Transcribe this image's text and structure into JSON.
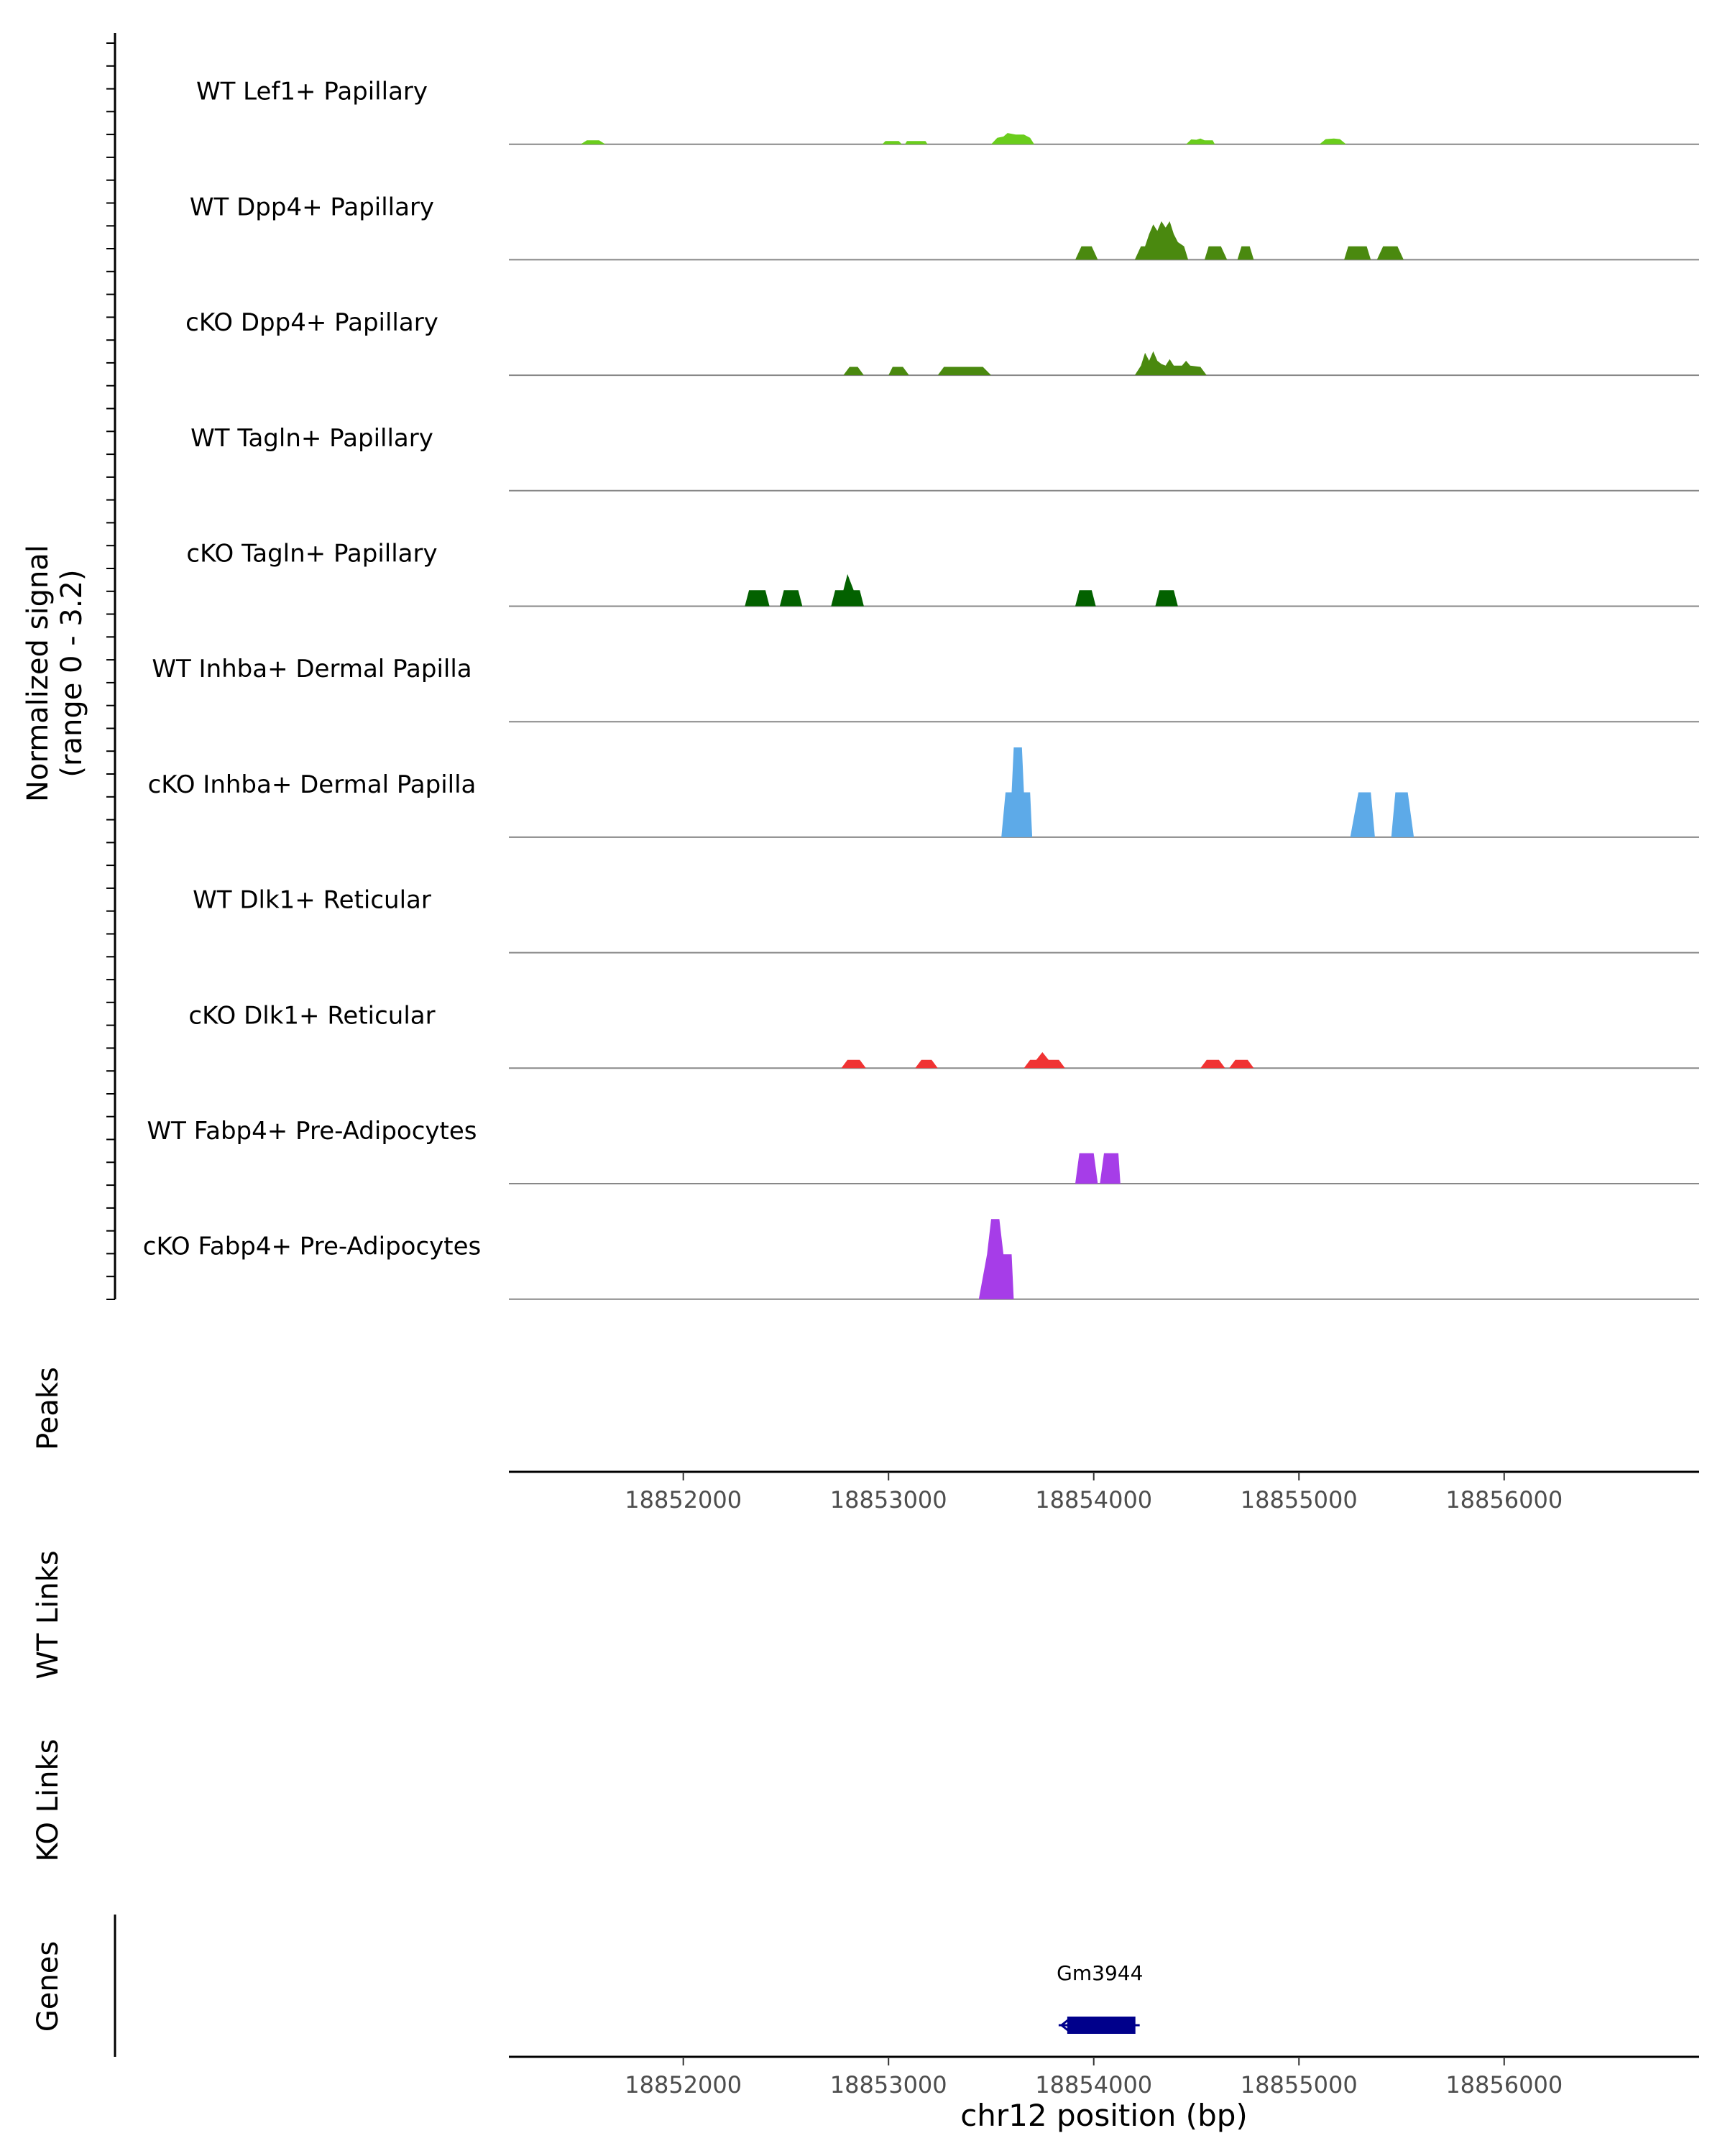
{
  "chart_data": {
    "type": "area",
    "chromosome": "chr12",
    "xlim": [
      18851150,
      18856950
    ],
    "xlabel": "chr12 position (bp)",
    "x_ticks": [
      18852000,
      18853000,
      18854000,
      18855000,
      18856000
    ],
    "x_tick_labels": [
      "18852000",
      "18853000",
      "18854000",
      "18855000",
      "18856000"
    ],
    "coverage": {
      "ylabel_line1": "Normalized signal",
      "ylabel_line2": "(range 0 - 3.2)",
      "ylim": [
        0,
        3.2
      ],
      "tracks": [
        {
          "name": "WT Lef1+ Papillary",
          "color": "#6ACD1C",
          "points": [
            [
              18851500,
              0
            ],
            [
              18851530,
              0.12
            ],
            [
              18851590,
              0.12
            ],
            [
              18851620,
              0
            ],
            [
              18852970,
              0
            ],
            [
              18852985,
              0.1
            ],
            [
              18853050,
              0.1
            ],
            [
              18853065,
              0
            ],
            [
              18853080,
              0
            ],
            [
              18853090,
              0.1
            ],
            [
              18853180,
              0.1
            ],
            [
              18853190,
              0
            ],
            [
              18853500,
              0
            ],
            [
              18853530,
              0.2
            ],
            [
              18853560,
              0.24
            ],
            [
              18853580,
              0.35
            ],
            [
              18853620,
              0.3
            ],
            [
              18853660,
              0.3
            ],
            [
              18853690,
              0.2
            ],
            [
              18853710,
              0
            ],
            [
              18854450,
              0
            ],
            [
              18854475,
              0.15
            ],
            [
              18854500,
              0.14
            ],
            [
              18854520,
              0.18
            ],
            [
              18854540,
              0.12
            ],
            [
              18854580,
              0.12
            ],
            [
              18854590,
              0
            ],
            [
              18855100,
              0
            ],
            [
              18855130,
              0.16
            ],
            [
              18855170,
              0.18
            ],
            [
              18855200,
              0.16
            ],
            [
              18855230,
              0
            ]
          ]
        },
        {
          "name": "WT Dpp4+ Papillary",
          "color": "#4A890F",
          "points": [
            [
              18853910,
              0
            ],
            [
              18853940,
              0.42
            ],
            [
              18853990,
              0.42
            ],
            [
              18854020,
              0
            ],
            [
              18854200,
              0
            ],
            [
              18854230,
              0.42
            ],
            [
              18854250,
              0.42
            ],
            [
              18854270,
              0.8
            ],
            [
              18854290,
              1.1
            ],
            [
              18854310,
              0.9
            ],
            [
              18854330,
              1.2
            ],
            [
              18854350,
              1.0
            ],
            [
              18854370,
              1.2
            ],
            [
              18854390,
              0.8
            ],
            [
              18854410,
              0.55
            ],
            [
              18854440,
              0.42
            ],
            [
              18854460,
              0
            ],
            [
              18854540,
              0
            ],
            [
              18854560,
              0.42
            ],
            [
              18854620,
              0.42
            ],
            [
              18854650,
              0
            ],
            [
              18854700,
              0
            ],
            [
              18854720,
              0.42
            ],
            [
              18854760,
              0.42
            ],
            [
              18854780,
              0
            ],
            [
              18855220,
              0
            ],
            [
              18855240,
              0.42
            ],
            [
              18855330,
              0.42
            ],
            [
              18855350,
              0
            ],
            [
              18855380,
              0
            ],
            [
              18855410,
              0.42
            ],
            [
              18855480,
              0.42
            ],
            [
              18855510,
              0
            ]
          ]
        },
        {
          "name": "cKO Dpp4+ Papillary",
          "color": "#4A890F",
          "points": [
            [
              18852780,
              0
            ],
            [
              18852810,
              0.26
            ],
            [
              18852850,
              0.26
            ],
            [
              18852880,
              0
            ],
            [
              18853000,
              0
            ],
            [
              18853020,
              0.26
            ],
            [
              18853070,
              0.26
            ],
            [
              18853100,
              0
            ],
            [
              18853240,
              0
            ],
            [
              18853270,
              0.26
            ],
            [
              18853460,
              0.26
            ],
            [
              18853500,
              0
            ],
            [
              18854200,
              0
            ],
            [
              18854230,
              0.3
            ],
            [
              18854250,
              0.7
            ],
            [
              18854270,
              0.45
            ],
            [
              18854290,
              0.75
            ],
            [
              18854310,
              0.45
            ],
            [
              18854330,
              0.35
            ],
            [
              18854350,
              0.3
            ],
            [
              18854370,
              0.5
            ],
            [
              18854390,
              0.3
            ],
            [
              18854430,
              0.3
            ],
            [
              18854450,
              0.45
            ],
            [
              18854470,
              0.3
            ],
            [
              18854520,
              0.26
            ],
            [
              18854550,
              0
            ]
          ]
        },
        {
          "name": "WT Tagln+ Papillary",
          "color": "#1E6B00",
          "points": []
        },
        {
          "name": "cKO Tagln+ Papillary",
          "color": "#036100",
          "points": [
            [
              18852300,
              0
            ],
            [
              18852320,
              0.5
            ],
            [
              18852400,
              0.5
            ],
            [
              18852420,
              0
            ],
            [
              18852470,
              0
            ],
            [
              18852490,
              0.5
            ],
            [
              18852560,
              0.5
            ],
            [
              18852580,
              0
            ],
            [
              18852720,
              0
            ],
            [
              18852740,
              0.5
            ],
            [
              18852780,
              0.5
            ],
            [
              18852800,
              1.0
            ],
            [
              18852830,
              0.5
            ],
            [
              18852860,
              0.5
            ],
            [
              18852880,
              0
            ],
            [
              18853910,
              0
            ],
            [
              18853930,
              0.5
            ],
            [
              18853990,
              0.5
            ],
            [
              18854010,
              0
            ],
            [
              18854300,
              0
            ],
            [
              18854320,
              0.5
            ],
            [
              18854390,
              0.5
            ],
            [
              18854410,
              0
            ]
          ]
        },
        {
          "name": "WT Inhba+ Dermal Papilla",
          "color": "#5DAAE8",
          "points": []
        },
        {
          "name": "cKO Inhba+ Dermal Papilla",
          "color": "#5DAAE8",
          "points": [
            [
              18853550,
              0
            ],
            [
              18853570,
              1.4
            ],
            [
              18853600,
              1.4
            ],
            [
              18853610,
              2.8
            ],
            [
              18853650,
              2.8
            ],
            [
              18853660,
              1.4
            ],
            [
              18853690,
              1.4
            ],
            [
              18853700,
              0
            ],
            [
              18855250,
              0
            ],
            [
              18855290,
              1.4
            ],
            [
              18855350,
              1.4
            ],
            [
              18855370,
              0
            ],
            [
              18855450,
              0
            ],
            [
              18855470,
              1.4
            ],
            [
              18855530,
              1.4
            ],
            [
              18855560,
              0
            ]
          ]
        },
        {
          "name": "WT Dlk1+ Reticular",
          "color": "#E83A3A",
          "points": []
        },
        {
          "name": "cKO Dlk1+ Reticular",
          "color": "#F03333",
          "points": [
            [
              18852770,
              0
            ],
            [
              18852800,
              0.26
            ],
            [
              18852860,
              0.26
            ],
            [
              18852890,
              0
            ],
            [
              18853130,
              0
            ],
            [
              18853160,
              0.26
            ],
            [
              18853210,
              0.26
            ],
            [
              18853240,
              0
            ],
            [
              18853660,
              0
            ],
            [
              18853690,
              0.26
            ],
            [
              18853720,
              0.26
            ],
            [
              18853750,
              0.5
            ],
            [
              18853780,
              0.26
            ],
            [
              18853830,
              0.26
            ],
            [
              18853860,
              0
            ],
            [
              18854520,
              0
            ],
            [
              18854550,
              0.26
            ],
            [
              18854610,
              0.26
            ],
            [
              18854640,
              0
            ],
            [
              18854660,
              0
            ],
            [
              18854690,
              0.26
            ],
            [
              18854750,
              0.26
            ],
            [
              18854780,
              0
            ]
          ]
        },
        {
          "name": "WT Fabp4+ Pre-Adipocytes",
          "color": "#A63DE8",
          "points": [
            [
              18853910,
              0
            ],
            [
              18853930,
              0.95
            ],
            [
              18854000,
              0.95
            ],
            [
              18854020,
              0
            ],
            [
              18854030,
              0
            ],
            [
              18854050,
              0.95
            ],
            [
              18854120,
              0.95
            ],
            [
              18854130,
              0
            ]
          ]
        },
        {
          "name": "cKO Fabp4+ Pre-Adipocytes",
          "color": "#A63DE8",
          "points": [
            [
              18853440,
              0
            ],
            [
              18853480,
              1.4
            ],
            [
              18853500,
              2.5
            ],
            [
              18853540,
              2.5
            ],
            [
              18853560,
              1.4
            ],
            [
              18853600,
              1.4
            ],
            [
              18853610,
              0
            ]
          ]
        }
      ]
    },
    "peaks_label": "Peaks",
    "wt_links_label": "WT Links",
    "ko_links_label": "KO Links",
    "genes": {
      "label": "Genes",
      "items": [
        {
          "name": "Gm3944",
          "start": 18853850,
          "end": 18854210,
          "strand": "-",
          "color": "#00008B"
        }
      ]
    }
  }
}
